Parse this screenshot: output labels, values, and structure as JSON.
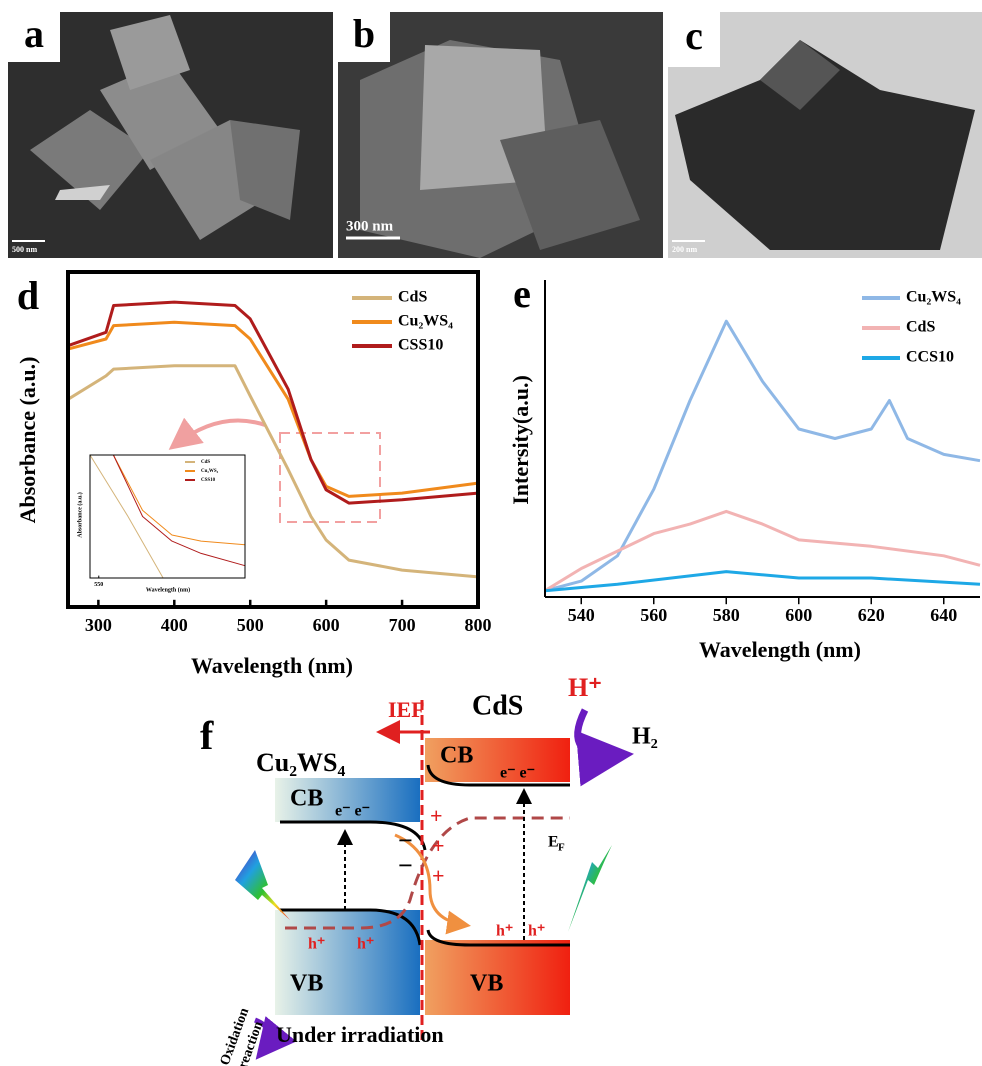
{
  "images": [
    {
      "label": "a",
      "scale_bar": "500 nm"
    },
    {
      "label": "b",
      "scale_bar": "300 nm"
    },
    {
      "label": "c",
      "scale_bar": "200 nm"
    }
  ],
  "chart_data": [
    {
      "type": "line",
      "label": "d",
      "xlabel": "Wavelength (nm)",
      "ylabel": "Absorbance (a.u.)",
      "xlim": [
        260,
        800
      ],
      "xticks": [
        300,
        400,
        500,
        600,
        700,
        800
      ],
      "ylim": [
        0,
        1
      ],
      "x": [
        260,
        310,
        320,
        400,
        480,
        500,
        550,
        580,
        600,
        630,
        700,
        800
      ],
      "series": [
        {
          "name": "CdS",
          "color": "#d4b47a",
          "values": [
            0.62,
            0.69,
            0.71,
            0.72,
            0.72,
            0.63,
            0.41,
            0.27,
            0.2,
            0.14,
            0.11,
            0.09
          ]
        },
        {
          "name": "Cu₂WS₄",
          "color": "#f08a1c",
          "values": [
            0.77,
            0.8,
            0.84,
            0.85,
            0.84,
            0.8,
            0.62,
            0.44,
            0.36,
            0.33,
            0.34,
            0.37
          ]
        },
        {
          "name": "CSS10",
          "color": "#b01c1c",
          "values": [
            0.78,
            0.82,
            0.9,
            0.91,
            0.9,
            0.86,
            0.65,
            0.44,
            0.35,
            0.31,
            0.32,
            0.34
          ]
        }
      ]
    },
    {
      "type": "line",
      "xlabel": "Wavelength (nm)",
      "ylabel": "Absorbance (a.u.)",
      "xlim": [
        547,
        600
      ],
      "xticks": [
        550
      ],
      "ylim": [
        0,
        1
      ],
      "series": [
        {
          "name": "CdS",
          "color": "#d4b47a",
          "x": [
            547,
            560,
            572
          ],
          "values": [
            1.0,
            0.5,
            0.0
          ]
        },
        {
          "name": "Cu₂WS₄",
          "color": "#f08a1c",
          "x": [
            555,
            565,
            575,
            585,
            600
          ],
          "values": [
            1.0,
            0.55,
            0.35,
            0.3,
            0.27
          ]
        },
        {
          "name": "CSS10",
          "color": "#b01c1c",
          "x": [
            555,
            565,
            575,
            585,
            600
          ],
          "values": [
            1.0,
            0.5,
            0.3,
            0.2,
            0.1
          ]
        }
      ]
    },
    {
      "type": "line",
      "label": "e",
      "xlabel": "Wavelength (nm)",
      "ylabel": "Intersity(a.u.)",
      "xlim": [
        530,
        650
      ],
      "xticks": [
        540,
        560,
        580,
        600,
        620,
        640
      ],
      "ylim": [
        0,
        1
      ],
      "series": [
        {
          "name": "Cu₂WS₄",
          "color": "#8fb8e6",
          "x": [
            530,
            540,
            550,
            560,
            570,
            580,
            590,
            600,
            610,
            620,
            625,
            630,
            640,
            650
          ],
          "values": [
            0.02,
            0.05,
            0.13,
            0.34,
            0.62,
            0.87,
            0.68,
            0.53,
            0.5,
            0.53,
            0.62,
            0.5,
            0.45,
            0.43
          ]
        },
        {
          "name": "CdS",
          "color": "#f2b3b3",
          "x": [
            530,
            540,
            560,
            570,
            580,
            590,
            600,
            620,
            640,
            650
          ],
          "values": [
            0.02,
            0.09,
            0.2,
            0.23,
            0.27,
            0.23,
            0.18,
            0.16,
            0.13,
            0.1
          ]
        },
        {
          "name": "CCS10",
          "color": "#1ea8e6",
          "x": [
            530,
            550,
            580,
            600,
            620,
            650
          ],
          "values": [
            0.02,
            0.04,
            0.08,
            0.06,
            0.06,
            0.04
          ]
        }
      ]
    }
  ],
  "diagram": {
    "label": "f",
    "ief": "IEF",
    "cds": "CdS",
    "cu2ws4": "Cu₂WS₄",
    "h_plus": "H⁺",
    "h2": "H₂",
    "cb_left": "CB",
    "cb_right": "CB",
    "vb_left": "VB",
    "vb_right": "VB",
    "electrons_left": "e⁻ e⁻",
    "electrons_right": "e⁻ e⁻",
    "holes_left": [
      "h⁺",
      "h⁺"
    ],
    "holes_right": [
      "h⁺",
      "h⁺"
    ],
    "plus": [
      "+",
      "+",
      "+"
    ],
    "minus": [
      "−",
      "−"
    ],
    "fermi": "E",
    "fermi_sub": "F",
    "oxidation": [
      "Oxidation",
      "reaction"
    ],
    "irradiation": "Under irradiation"
  }
}
